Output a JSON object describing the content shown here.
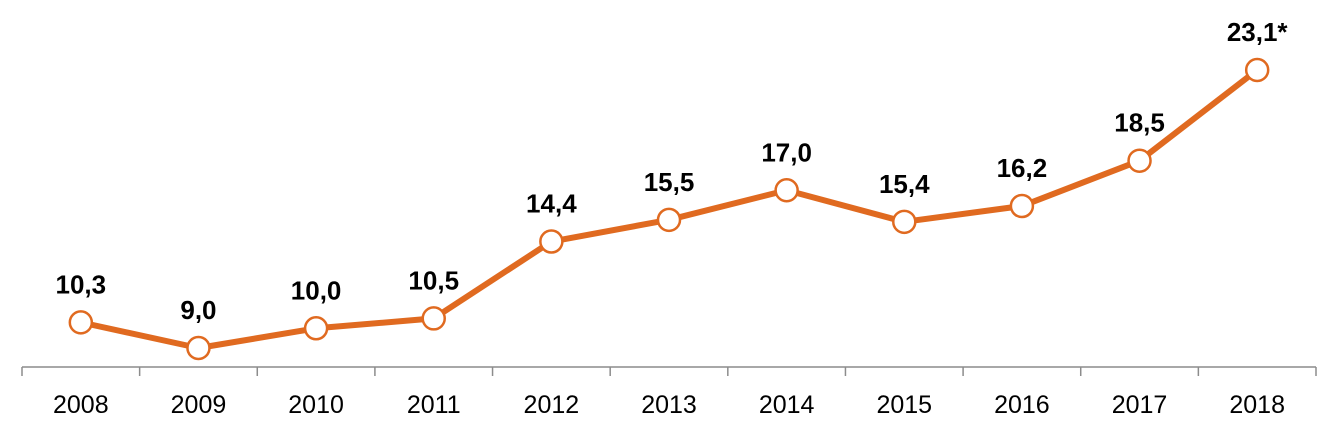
{
  "chart_data": {
    "type": "line",
    "categories": [
      "2008",
      "2009",
      "2010",
      "2011",
      "2012",
      "2013",
      "2014",
      "2015",
      "2016",
      "2017",
      "2018"
    ],
    "series": [
      {
        "values": [
          10.3,
          9.0,
          10.0,
          10.5,
          14.4,
          15.5,
          17.0,
          15.4,
          16.2,
          18.5,
          23.1
        ],
        "labels": [
          "10,3",
          "9,0",
          "10,0",
          "10,5",
          "14,4",
          "15,5",
          "17,0",
          "15,4",
          "16,2",
          "18,5",
          "23,1*"
        ]
      }
    ],
    "title": "",
    "xlabel": "",
    "ylabel": "",
    "ylim": [
      7.8,
      24
    ],
    "grid": false,
    "legend": "none",
    "colors": {
      "line": "#E06A20",
      "marker_fill": "#FFFFFF",
      "axis": "#8C8C8C",
      "text": "#000000"
    }
  }
}
